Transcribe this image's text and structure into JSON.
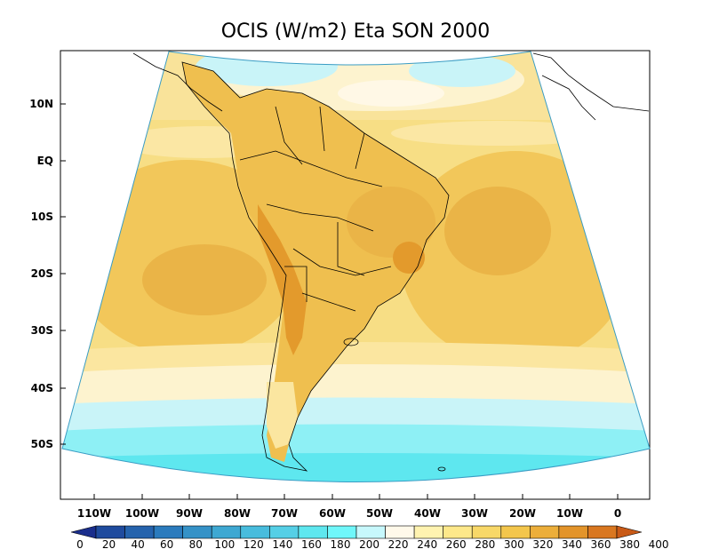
{
  "title": "OCIS (W/m2) Eta SON 2000",
  "lat_ticks": [
    "10N",
    "EQ",
    "10S",
    "20S",
    "30S",
    "40S",
    "50S"
  ],
  "lon_ticks": [
    "110W",
    "100W",
    "90W",
    "80W",
    "70W",
    "60W",
    "50W",
    "40W",
    "30W",
    "20W",
    "10W",
    "0"
  ],
  "colorbar": {
    "labels": [
      "0",
      "20",
      "40",
      "60",
      "80",
      "100",
      "120",
      "140",
      "160",
      "180",
      "200",
      "220",
      "240",
      "260",
      "280",
      "300",
      "320",
      "340",
      "360",
      "380",
      "400"
    ],
    "colors": [
      "#1a2e8c",
      "#1f4b9e",
      "#2563ad",
      "#2b7bbd",
      "#3592c7",
      "#3ea8d2",
      "#48bcdd",
      "#55cfe6",
      "#5ee7ef",
      "#6ff7fa",
      "#c7f8fc",
      "#fff9ea",
      "#fff3b0",
      "#fde88a",
      "#f8d868",
      "#f3c64c",
      "#ecae3a",
      "#e3942a",
      "#d97720",
      "#c95a17"
    ]
  }
}
